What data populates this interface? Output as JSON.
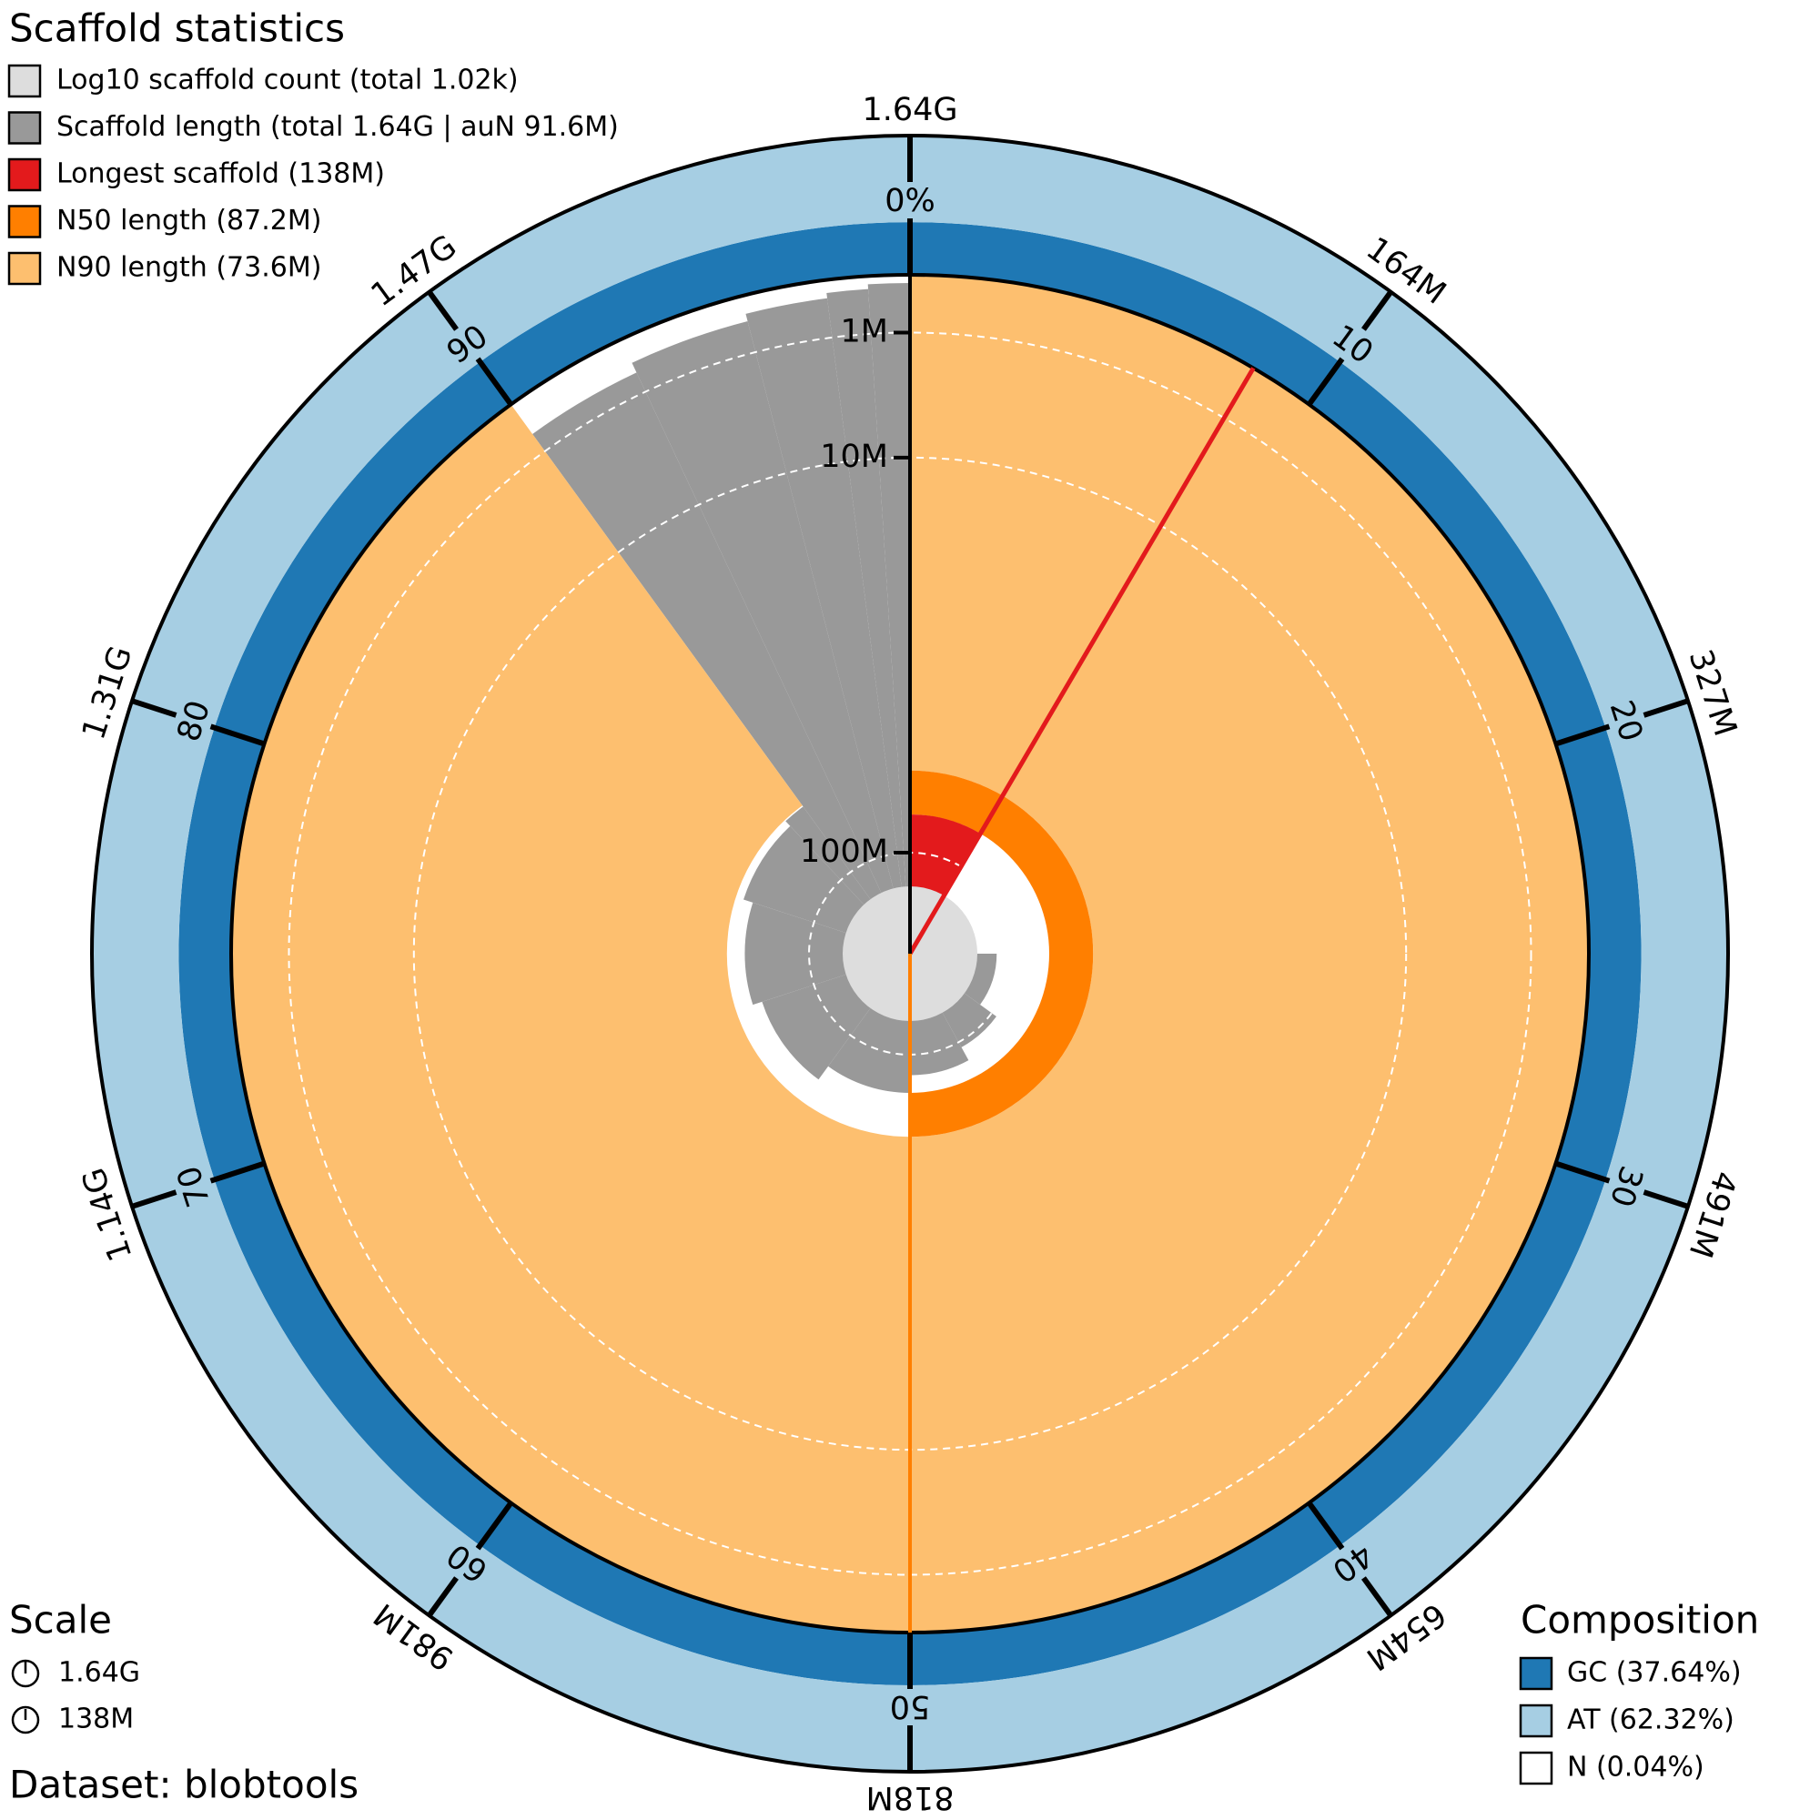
{
  "chart_data": {
    "type": "snail",
    "title": "Scaffold statistics",
    "xlim": [
      0,
      1635000000
    ],
    "xticks": [
      {
        "value": 163500000,
        "label": "164M"
      },
      {
        "value": 327000000,
        "label": "327M"
      },
      {
        "value": 490500000,
        "label": "491M"
      },
      {
        "value": 654000000,
        "label": "654M"
      },
      {
        "value": 817500000,
        "label": "818M"
      },
      {
        "value": 981000000,
        "label": "981M"
      },
      {
        "value": 1144500000,
        "label": "1.14G"
      },
      {
        "value": 1308000000,
        "label": "1.31G"
      },
      {
        "value": 1471500000,
        "label": "1.47G"
      },
      {
        "value": 1635000000,
        "label": "1.64G"
      }
    ],
    "plim": [
      0,
      100
    ],
    "pticks": [
      {
        "value": 0,
        "label": "0%"
      },
      10,
      20,
      30,
      40,
      50,
      60,
      70,
      80,
      90
    ],
    "ylim": [
      138000000,
      0
    ],
    "yscale": "sqrt",
    "yticks": [
      {
        "value": 1000000,
        "label": "1M"
      },
      {
        "value": 10000000,
        "label": "10M"
      },
      {
        "value": 100000000,
        "label": "100M"
      }
    ],
    "grid": true,
    "legend": [
      {
        "label": "Log10 scaffold count (total 1.02k)",
        "color": "#dddddd"
      },
      {
        "label": "Scaffold length (total 1.64G | auN 91.6M)",
        "color": "#999999"
      },
      {
        "label": "Longest scaffold (138M)",
        "color": "#e31a1c",
        "value": 138000000
      },
      {
        "label": "N50 length (87.2M)",
        "color": "#ff7f00",
        "value": 87200000,
        "percent": 50
      },
      {
        "label": "N90 length (73.6M)",
        "color": "#fdbf6f",
        "value": 73600000,
        "percent": 90
      }
    ],
    "lengths": {
      "x": [
        0,
        8.4,
        15,
        25,
        35,
        42,
        50,
        60,
        70,
        80,
        88,
        90,
        93,
        96,
        98,
        99
      ],
      "values": [
        138000000,
        125000000,
        115000000,
        105000000,
        98000000,
        93000000,
        87200000,
        82000000,
        79000000,
        76000000,
        74000000,
        400000,
        200000,
        100000,
        50000,
        20000
      ]
    },
    "scale": {
      "title": "Scale",
      "items": [
        "1.64G",
        "138M"
      ]
    },
    "composition": {
      "title": "Composition",
      "items": [
        {
          "label": "GC (37.64%)",
          "value": 37.64,
          "color": "#1f78b4"
        },
        {
          "label": "AT (62.32%)",
          "value": 62.32,
          "color": "#a6cee3"
        },
        {
          "label": "N (0.04%)",
          "value": 0.04,
          "color": "#ffffff"
        }
      ]
    },
    "dataset": "Dataset: blobtools"
  }
}
